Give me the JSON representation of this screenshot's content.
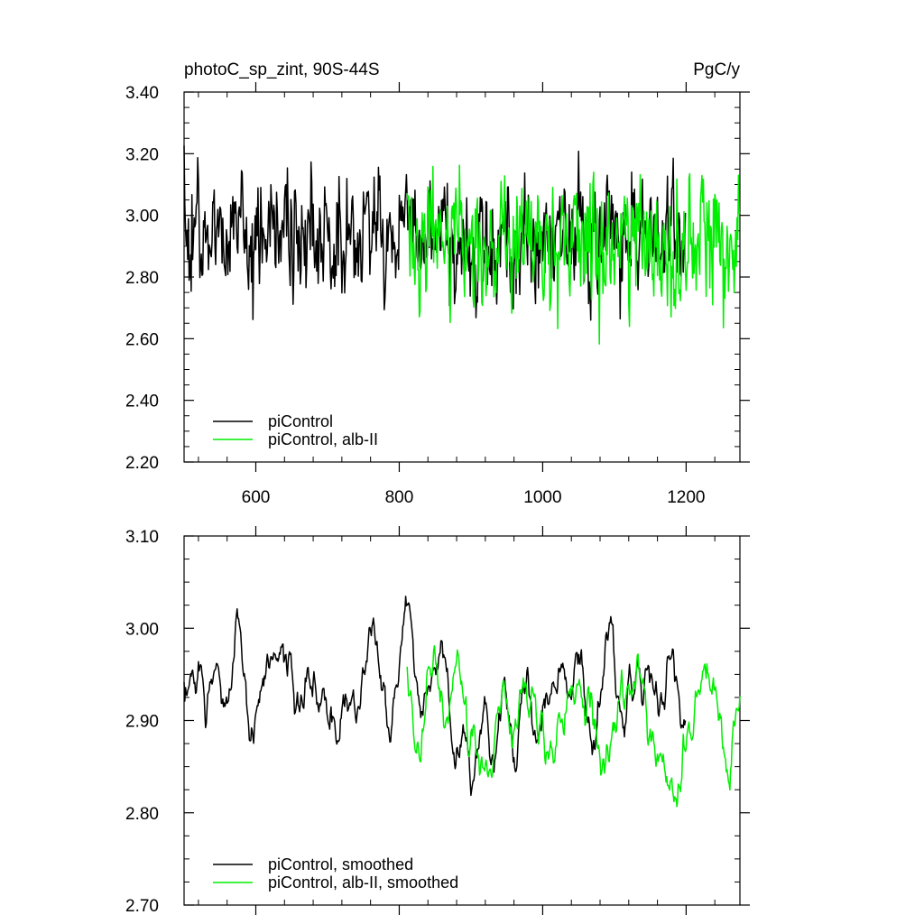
{
  "chart_data": [
    {
      "type": "line",
      "title": "photoC_sp_zint, 90S-44S",
      "units": "PgC/y",
      "xlim": [
        500,
        1275
      ],
      "ylim": [
        2.2,
        3.4
      ],
      "x_major_ticks": [
        600,
        800,
        1000,
        1200
      ],
      "x_tick_labels": [
        "600",
        "800",
        "1000",
        "1200"
      ],
      "y_major_ticks": [
        2.2,
        2.4,
        2.6,
        2.8,
        3.0,
        3.2,
        3.4
      ],
      "y_tick_labels": [
        "2.20",
        "2.40",
        "2.60",
        "2.80",
        "3.00",
        "3.20",
        "3.40"
      ],
      "grid": false,
      "legend_position": "bottom-left",
      "series": [
        {
          "name": "piControl",
          "color": "#000000",
          "x_start": 500,
          "x_end": 1199,
          "mean": 2.93,
          "amplitude": 0.13
        },
        {
          "name": "piControl, alb-II",
          "color": "#00ee00",
          "x_start": 811,
          "x_end": 1275,
          "mean": 2.91,
          "amplitude": 0.14
        }
      ]
    },
    {
      "type": "line",
      "xlim": [
        500,
        1275
      ],
      "ylim": [
        2.7,
        3.1
      ],
      "x_major_ticks": [
        600,
        800,
        1000,
        1200
      ],
      "y_major_ticks": [
        2.7,
        2.8,
        2.9,
        3.0,
        3.1
      ],
      "y_tick_labels": [
        "2.70",
        "2.80",
        "2.90",
        "3.00",
        "3.10"
      ],
      "grid": false,
      "legend_position": "bottom-left",
      "series": [
        {
          "name": "piControl, smoothed",
          "color": "#000000",
          "x_start": 500,
          "x_end": 1199,
          "mean": 2.93,
          "amplitude": 0.05
        },
        {
          "name": "piControl, alb-II, smoothed",
          "color": "#00ee00",
          "x_start": 811,
          "x_end": 1275,
          "mean": 2.9,
          "amplitude": 0.05
        }
      ]
    }
  ]
}
